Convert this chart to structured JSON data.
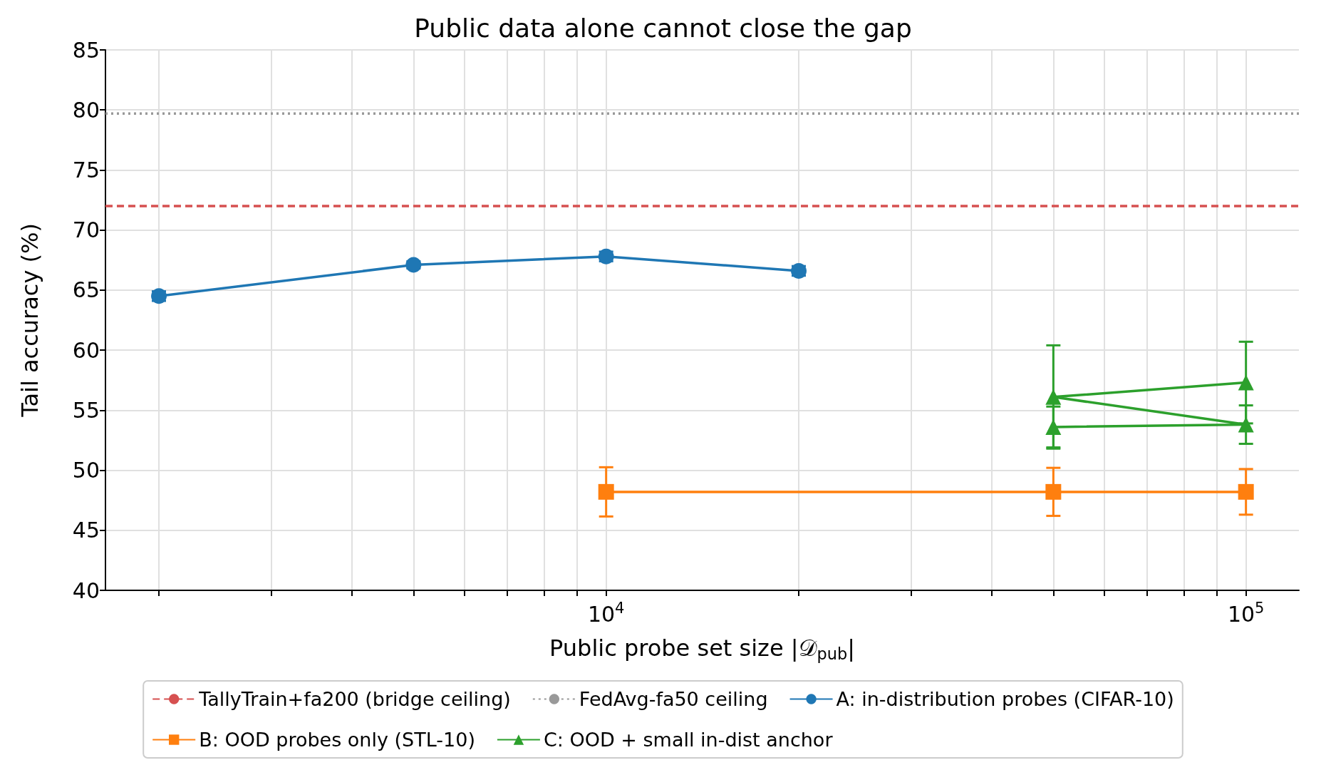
{
  "chart_data": {
    "type": "line",
    "title": "Public data alone cannot close the gap",
    "xlabel": "Public probe set size |𝒟$_{pub}$|",
    "ylabel": "Tail accuracy (%)",
    "log": "x",
    "grid": true,
    "legend": "bottom",
    "xlim": [
      1650,
      121000
    ],
    "xticks": [
      {
        "value": 2000,
        "label": null
      },
      {
        "value": 3000,
        "label": null
      },
      {
        "value": 4000,
        "label": null
      },
      {
        "value": 5000,
        "label": null
      },
      {
        "value": 6000,
        "label": null
      },
      {
        "value": 7000,
        "label": null
      },
      {
        "value": 8000,
        "label": null
      },
      {
        "value": 9000,
        "label": null
      },
      {
        "value": 10000,
        "label": "10$^{4}$"
      },
      {
        "value": 20000,
        "label": null
      },
      {
        "value": 30000,
        "label": null
      },
      {
        "value": 40000,
        "label": null
      },
      {
        "value": 50000,
        "label": null
      },
      {
        "value": 60000,
        "label": null
      },
      {
        "value": 70000,
        "label": null
      },
      {
        "value": 80000,
        "label": null
      },
      {
        "value": 90000,
        "label": null
      },
      {
        "value": 100000,
        "label": "10$^{5}$"
      }
    ],
    "ylim": [
      40,
      85
    ],
    "yticks": [
      40,
      45,
      50,
      55,
      60,
      65,
      70,
      75,
      80,
      85
    ],
    "ref_lines": [
      {
        "axis": "y",
        "value": 72.0,
        "label": "TallyTrain+fa200 (bridge ceiling)",
        "color": "#d65050",
        "line_style": "dashed"
      },
      {
        "axis": "y",
        "value": 79.7,
        "label": "FedAvg-fa50 ceiling",
        "color": "#999999",
        "line_style": "dotted"
      }
    ],
    "series": [
      {
        "name": "A: in-distribution probes (CIFAR-10)",
        "color": "#1f77b4",
        "marker": "circle",
        "x": [
          2000,
          5000,
          10000,
          20000
        ],
        "values": [
          64.5,
          67.1,
          67.8,
          66.6
        ],
        "errors": [
          0.4,
          0.3,
          0.4,
          0.4
        ]
      },
      {
        "name": "B: OOD probes only (STL-10)",
        "color": "#ff7f0e",
        "marker": "square",
        "x": [
          10000,
          50000,
          100000
        ],
        "values": [
          48.2,
          48.2,
          48.2
        ],
        "errors": [
          2.05,
          2.0,
          1.9
        ]
      },
      {
        "name": "C: OOD + small in-dist anchor",
        "color": "#2ca02c",
        "marker": "triangle",
        "x": [
          50000,
          100000,
          50000,
          100000
        ],
        "values": [
          53.6,
          53.8,
          56.1,
          57.3
        ],
        "errors": [
          1.7,
          1.6,
          4.3,
          3.4
        ]
      }
    ]
  }
}
